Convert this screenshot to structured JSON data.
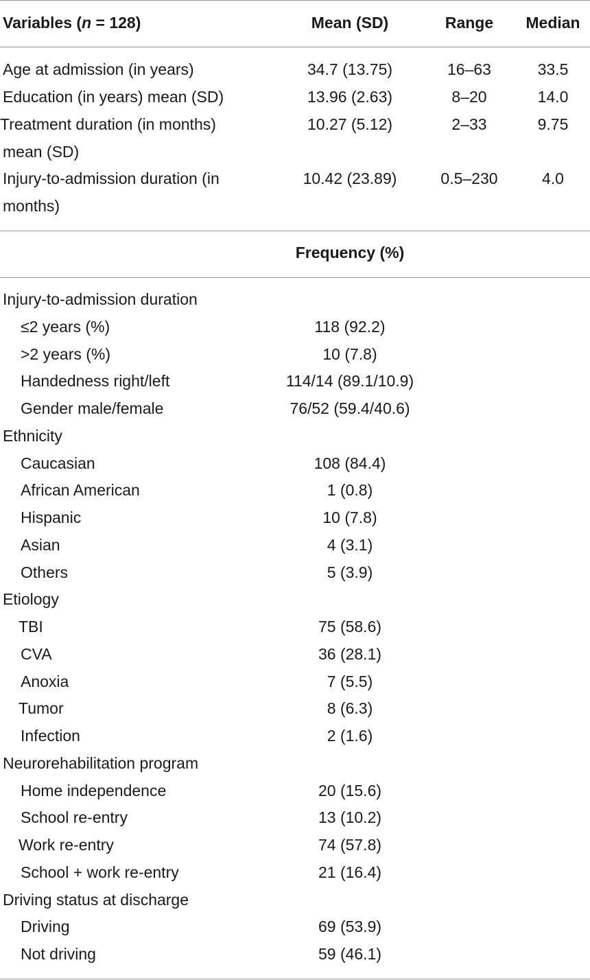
{
  "header": {
    "variables_prefix": "Variables (",
    "variables_n": "n",
    "variables_suffix": " = 128)",
    "mean_sd": "Mean (SD)",
    "range": "Range",
    "median": "Median"
  },
  "continuous_rows": [
    {
      "label": "Age at admission (in years)",
      "mean": "34.7 (13.75)",
      "range": "16–63",
      "median": "33.5"
    },
    {
      "label": "Education (in years) mean (SD)",
      "mean": "13.96 (2.63)",
      "range": "8–20",
      "median": "14.0"
    },
    {
      "label_line1": "Treatment duration (in months)",
      "label_line2": "mean (SD)",
      "mean": "10.27 (5.12)",
      "range": "2–33",
      "median": "9.75"
    },
    {
      "label_line1": "Injury-to-admission duration (in",
      "label_line2": "months)",
      "mean": "10.42 (23.89)",
      "range": "0.5–230",
      "median": "4.0"
    }
  ],
  "frequency_header": "Frequency (%)",
  "frequency_rows": [
    {
      "label": "Injury-to-admission duration",
      "value": "",
      "indent": 0
    },
    {
      "label": "≤2 years (%)",
      "value": "118 (92.2)",
      "indent": 1
    },
    {
      "label": ">2 years (%)",
      "value": "10 (7.8)",
      "indent": 1
    },
    {
      "label": "Handedness right/left",
      "value": "114/14 (89.1/10.9)",
      "indent": 1
    },
    {
      "label": "Gender male/female",
      "value": "76/52 (59.4/40.6)",
      "indent": 1
    },
    {
      "label": "Ethnicity",
      "value": "",
      "indent": 0
    },
    {
      "label": "Caucasian",
      "value": "108 (84.4)",
      "indent": 1
    },
    {
      "label": "African American",
      "value": "1 (0.8)",
      "indent": 1
    },
    {
      "label": "Hispanic",
      "value": "10 (7.8)",
      "indent": 1
    },
    {
      "label": "Asian",
      "value": "4 (3.1)",
      "indent": 1
    },
    {
      "label": "Others",
      "value": "5 (3.9)",
      "indent": 1
    },
    {
      "label": "Etiology",
      "value": "",
      "indent": 0
    },
    {
      "label": "TBI",
      "value": "75 (58.6)",
      "indent": 2
    },
    {
      "label": "CVA",
      "value": "36 (28.1)",
      "indent": 1
    },
    {
      "label": "Anoxia",
      "value": "7 (5.5)",
      "indent": 1
    },
    {
      "label": "Tumor",
      "value": "8 (6.3)",
      "indent": 2
    },
    {
      "label": "Infection",
      "value": "2 (1.6)",
      "indent": 1
    },
    {
      "label": "Neurorehabilitation program",
      "value": "",
      "indent": 0
    },
    {
      "label": "Home independence",
      "value": "20 (15.6)",
      "indent": 1
    },
    {
      "label": "School re-entry",
      "value": "13 (10.2)",
      "indent": 1
    },
    {
      "label": "Work re-entry",
      "value": "74 (57.8)",
      "indent": 2
    },
    {
      "label": "School + work re-entry",
      "value": "21 (16.4)",
      "indent": 1
    },
    {
      "label": "Driving status at discharge",
      "value": "",
      "indent": 0
    },
    {
      "label": "Driving",
      "value": "69 (53.9)",
      "indent": 1
    },
    {
      "label": "Not driving",
      "value": "59 (46.1)",
      "indent": 1
    }
  ]
}
